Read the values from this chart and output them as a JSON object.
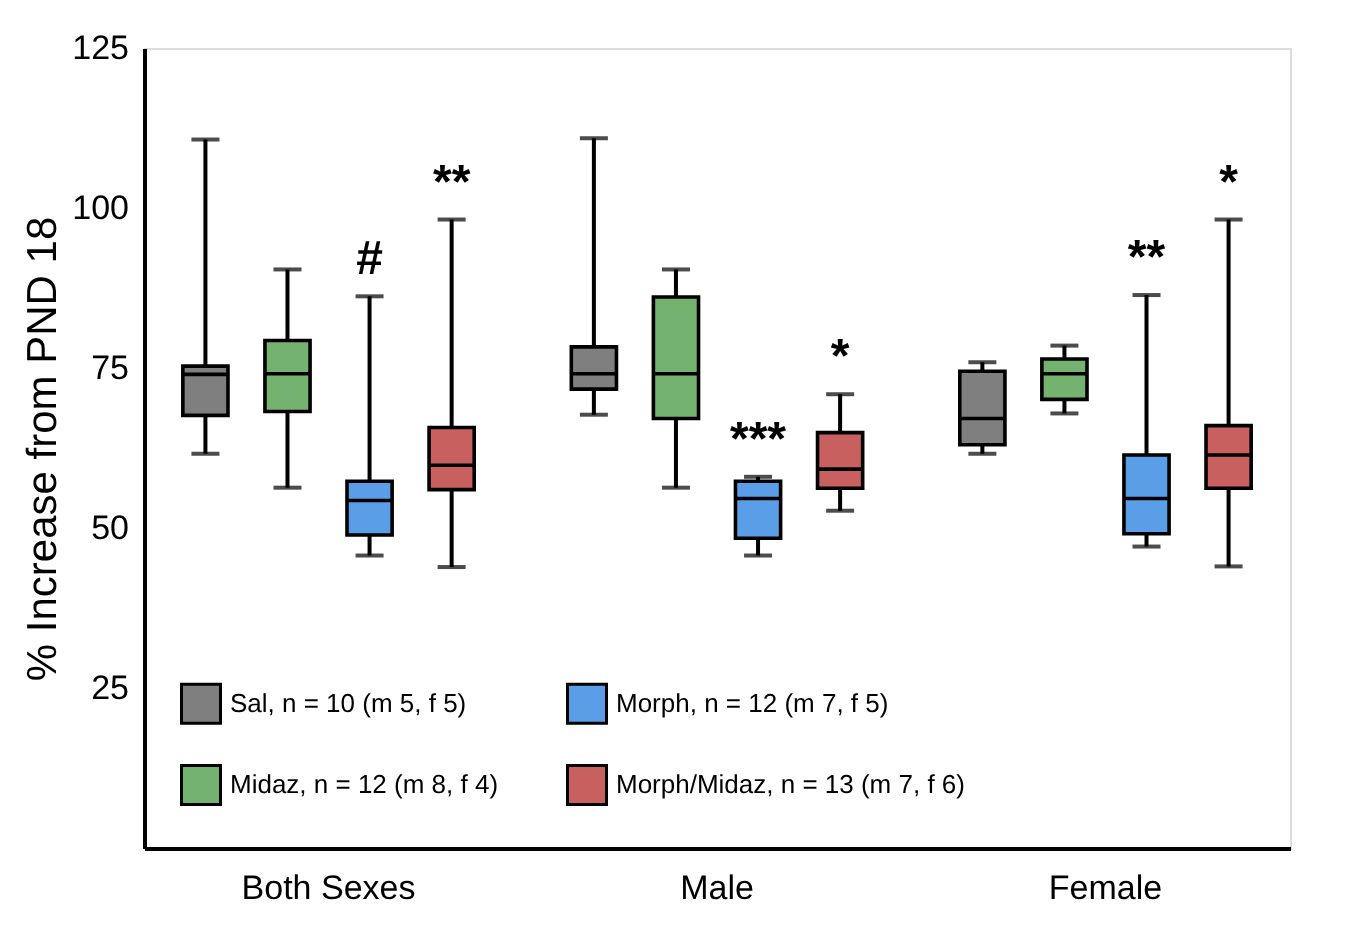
{
  "chart_data": {
    "type": "box",
    "ylabel": "% Increase from PND 18",
    "categories": [
      "Both Sexes",
      "Male",
      "Female"
    ],
    "ylim": [
      0,
      125
    ],
    "yticks": [
      25,
      50,
      75,
      100,
      125
    ],
    "grid": false,
    "legend": "bottom",
    "series": [
      {
        "name": "Sal, n = 10 (m 5, f 5)",
        "color": "#7f7f7f",
        "boxes": [
          {
            "low": 61.6,
            "q1": 67.6,
            "median": 74,
            "q3": 75.3,
            "high": 110.7
          },
          {
            "low": 67.7,
            "q1": 71.7,
            "median": 74.1,
            "q3": 78.3,
            "high": 110.9
          },
          {
            "low": 61.6,
            "q1": 63,
            "median": 67.1,
            "q3": 74.5,
            "high": 75.9
          }
        ],
        "value_labels": [
          null,
          null,
          null
        ]
      },
      {
        "name": "Midaz, n = 12 (m 8, f 4)",
        "color": "#74b26f",
        "boxes": [
          {
            "low": 56.3,
            "q1": 68.2,
            "median": 74.1,
            "q3": 79.3,
            "high": 90.4
          },
          {
            "low": 56.3,
            "q1": 67.1,
            "median": 74.1,
            "q3": 86.1,
            "high": 90.4
          },
          {
            "low": 67.9,
            "q1": 70.1,
            "median": 74.1,
            "q3": 76.4,
            "high": 78.5
          }
        ],
        "value_labels": [
          null,
          null,
          null
        ]
      },
      {
        "name": "Morph, n = 12 (m 7, f 5)",
        "color": "#5b9ee8",
        "boxes": [
          {
            "low": 45.7,
            "q1": 48.9,
            "median": 54.3,
            "q3": 57.3,
            "high": 86.2
          },
          {
            "low": 45.7,
            "q1": 48.4,
            "median": 54.6,
            "q3": 57.3,
            "high": 58
          },
          {
            "low": 47.1,
            "q1": 49.1,
            "median": 54.6,
            "q3": 61.4,
            "high": 86.4
          }
        ],
        "value_labels": [
          "#",
          "***",
          "**"
        ]
      },
      {
        "name": "Morph/Midaz, n = 13 (m 7, f 6)",
        "color": "#c8605f",
        "boxes": [
          {
            "low": 43.9,
            "q1": 56,
            "median": 59.8,
            "q3": 65.7,
            "high": 98.2
          },
          {
            "low": 52.7,
            "q1": 56.2,
            "median": 59.2,
            "q3": 64.9,
            "high": 70.9
          },
          {
            "low": 44,
            "q1": 56.2,
            "median": 61.4,
            "q3": 66,
            "high": 98.2
          }
        ],
        "value_labels": [
          "**",
          "*",
          "*"
        ]
      }
    ]
  }
}
